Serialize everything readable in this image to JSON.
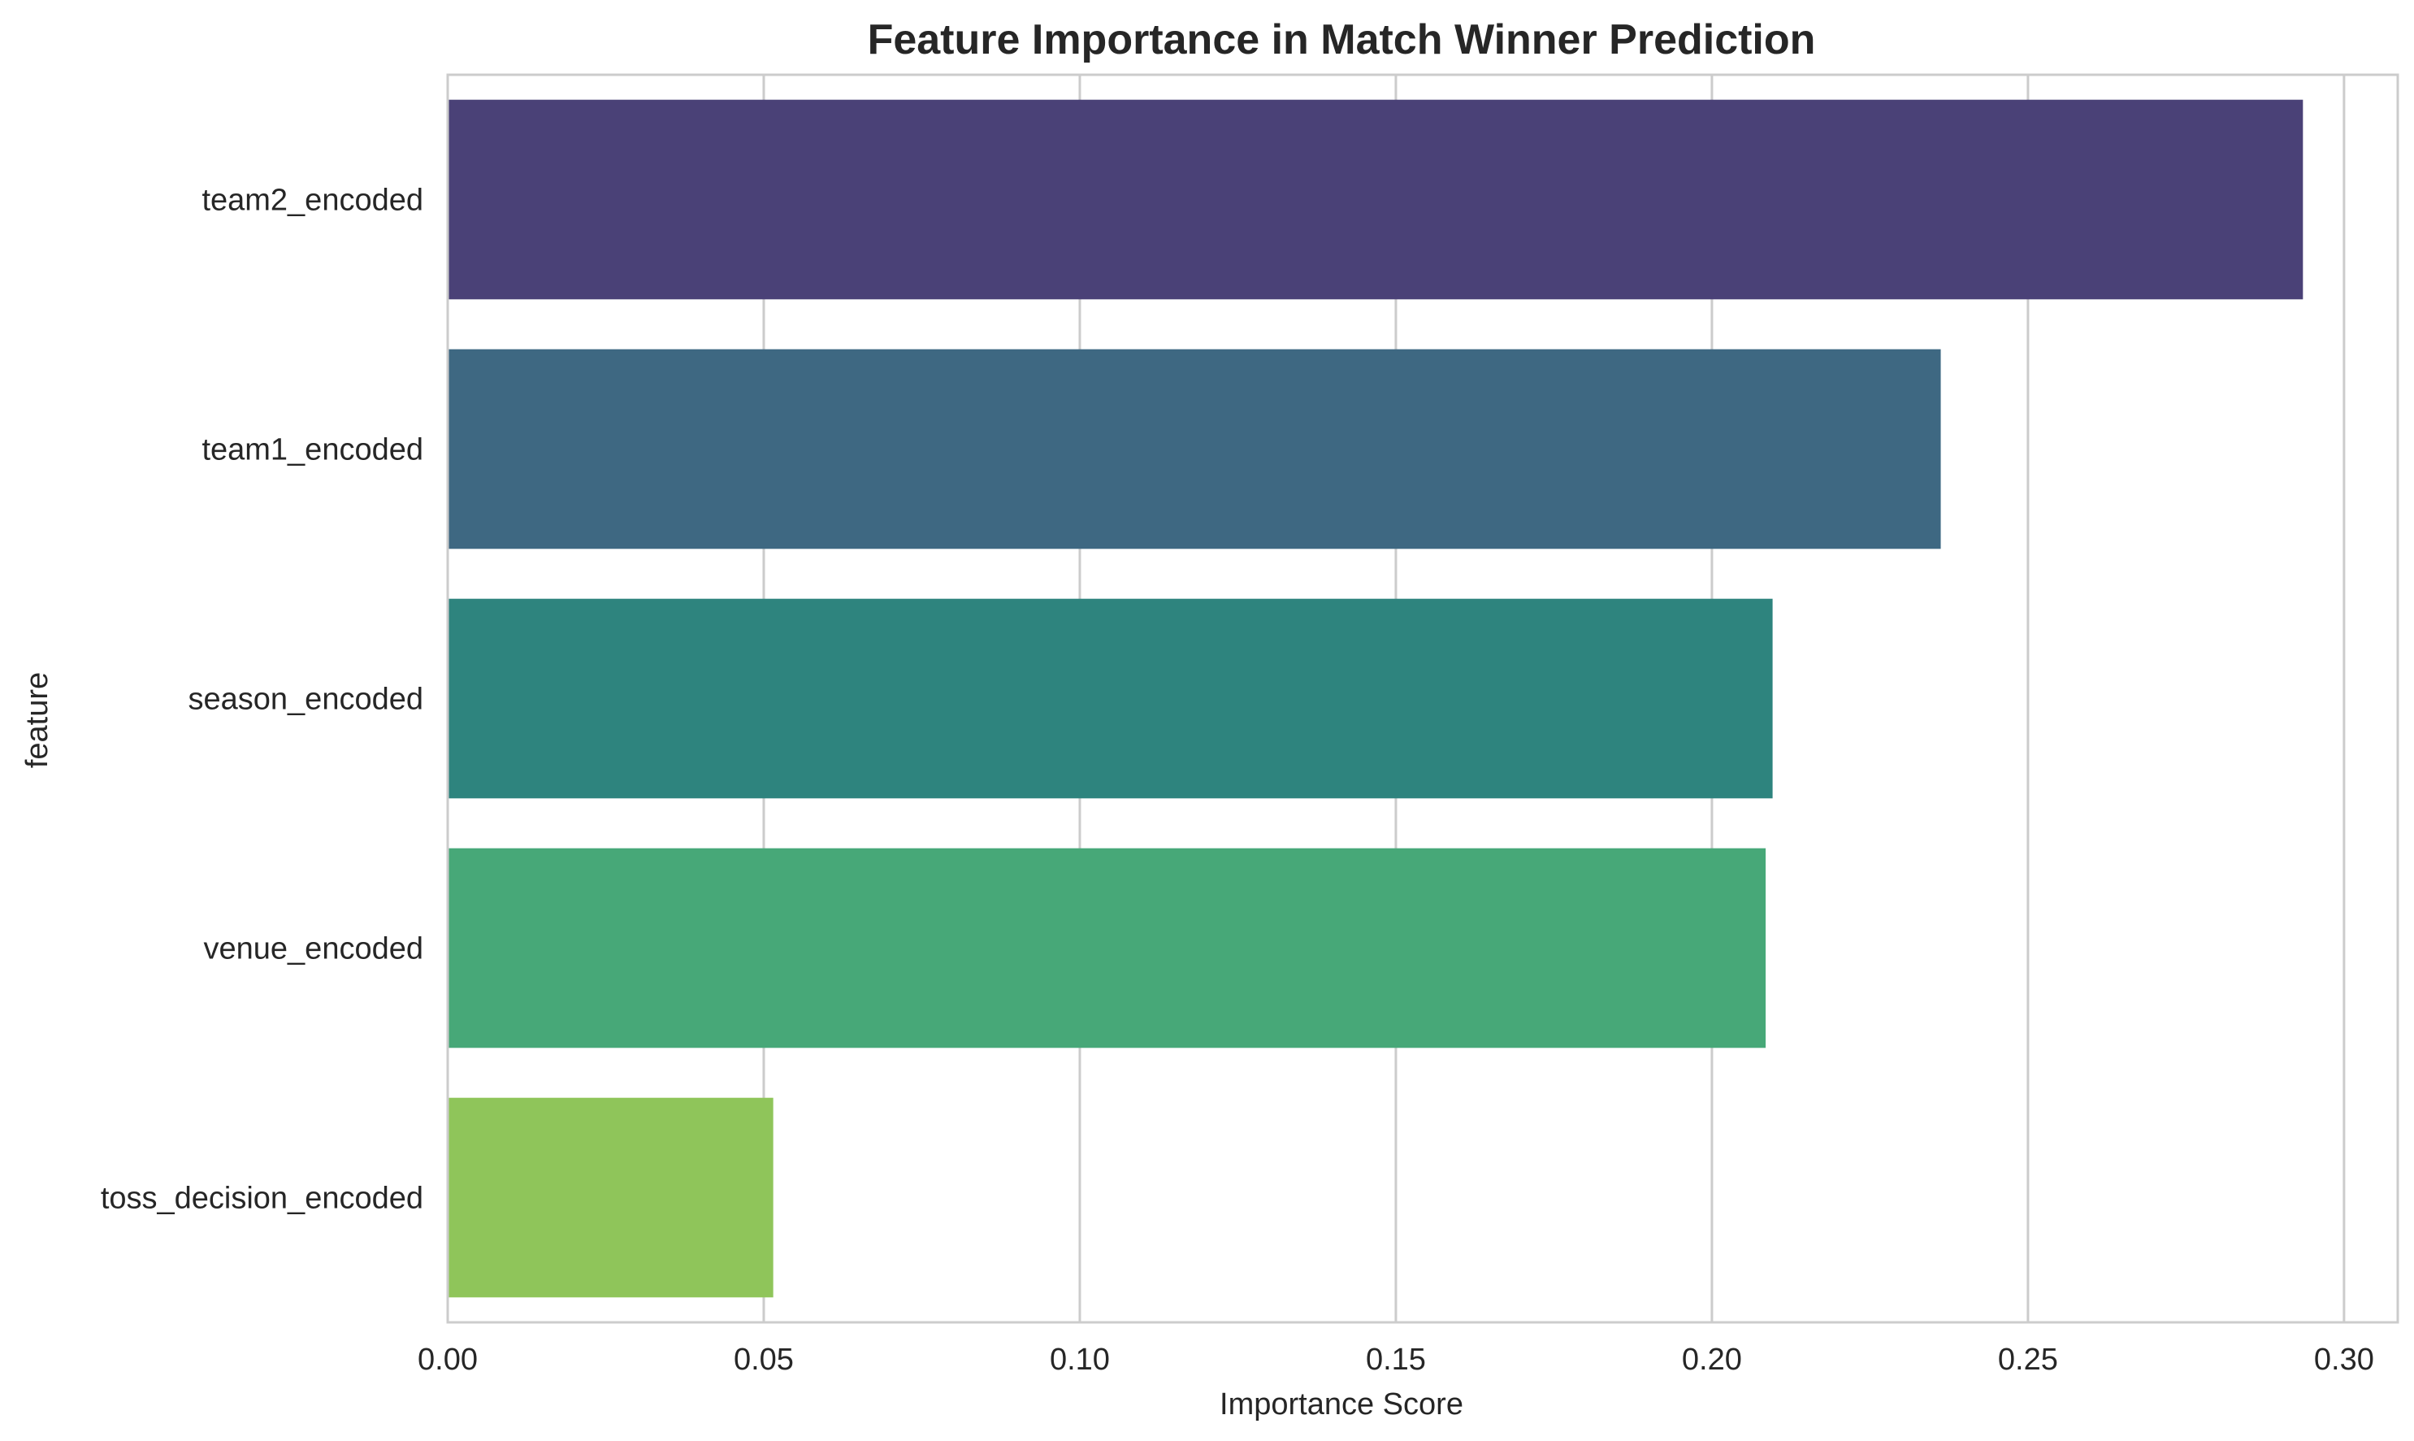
{
  "chart_data": {
    "type": "bar",
    "orientation": "horizontal",
    "title": "Feature Importance in Match Winner Prediction",
    "xlabel": "Importance Score",
    "ylabel": "feature",
    "categories": [
      "team2_encoded",
      "team1_encoded",
      "season_encoded",
      "venue_encoded",
      "toss_decision_encoded"
    ],
    "values": [
      0.2935,
      0.2362,
      0.2096,
      0.2085,
      0.0515
    ],
    "colors": [
      "#4a4177",
      "#3e6882",
      "#2e847e",
      "#47a878",
      "#8fc55a"
    ],
    "xlim": [
      0,
      0.3085
    ],
    "xticks": [
      0.0,
      0.05,
      0.1,
      0.15,
      0.2,
      0.25,
      0.3
    ],
    "xtick_labels": [
      "0.00",
      "0.05",
      "0.10",
      "0.15",
      "0.20",
      "0.25",
      "0.30"
    ],
    "grid": true,
    "palette": "viridis"
  }
}
